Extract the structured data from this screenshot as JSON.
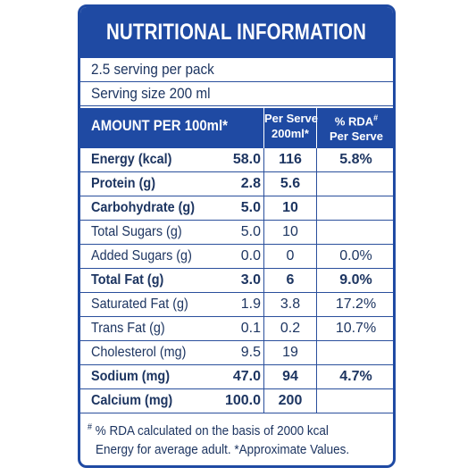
{
  "title": "NUTRITIONAL INFORMATION",
  "servings_per_pack": "2.5 serving per pack",
  "serving_size": "Serving size 200 ml",
  "header": {
    "amount_label": "AMOUNT PER 100ml*",
    "per_serve_line1": "Per Serve",
    "per_serve_line2": "200ml*",
    "rda_line1": "% RDA",
    "rda_mark": "#",
    "rda_line2": "Per Serve"
  },
  "rows": [
    {
      "name": "Energy (kcal)",
      "per100": "58.0",
      "per_serve": "116",
      "rda": "5.8%",
      "bold": true
    },
    {
      "name": "Protein (g)",
      "per100": "2.8",
      "per_serve": "5.6",
      "rda": "",
      "bold": true
    },
    {
      "name": "Carbohydrate (g)",
      "per100": "5.0",
      "per_serve": "10",
      "rda": "",
      "bold": true
    },
    {
      "name": "Total Sugars (g)",
      "per100": "5.0",
      "per_serve": "10",
      "rda": "",
      "bold": false
    },
    {
      "name": "Added Sugars (g)",
      "per100": "0.0",
      "per_serve": "0",
      "rda": "0.0%",
      "bold": false
    },
    {
      "name": "Total Fat (g)",
      "per100": "3.0",
      "per_serve": "6",
      "rda": "9.0%",
      "bold": true
    },
    {
      "name": "Saturated Fat (g)",
      "per100": "1.9",
      "per_serve": "3.8",
      "rda": "17.2%",
      "bold": false
    },
    {
      "name": "Trans Fat (g)",
      "per100": "0.1",
      "per_serve": "0.2",
      "rda": "10.7%",
      "bold": false
    },
    {
      "name": "Cholesterol (mg)",
      "per100": "9.5",
      "per_serve": "19",
      "rda": "",
      "bold": false
    },
    {
      "name": "Sodium (mg)",
      "per100": "47.0",
      "per_serve": "94",
      "rda": "4.7%",
      "bold": true
    },
    {
      "name": "Calcium (mg)",
      "per100": "100.0",
      "per_serve": "200",
      "rda": "",
      "bold": true
    }
  ],
  "footnote": {
    "mark": "#",
    "line1": "% RDA calculated on the basis of 2000 kcal",
    "line2": "Energy for average adult. *Approximate Values."
  },
  "colors": {
    "brand_blue": "#1f4aa3",
    "text": "#1d3561",
    "background": "#ffffff"
  }
}
